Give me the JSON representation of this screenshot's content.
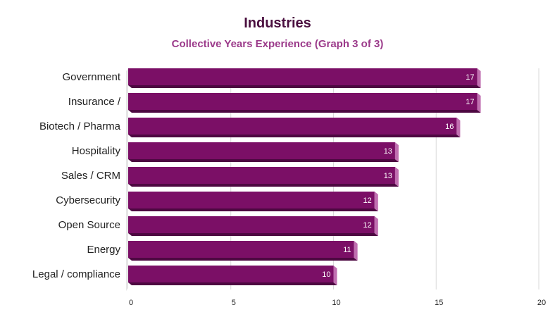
{
  "chart_data": {
    "type": "bar",
    "orientation": "horizontal",
    "title": "Industries",
    "subtitle": "Collective Years Experience (Graph 3 of 3)",
    "xlabel": "",
    "ylabel": "",
    "categories": [
      "Government",
      "Insurance /",
      "Biotech / Pharma",
      "Hospitality",
      "Sales / CRM",
      "Cybersecurity",
      "Open Source",
      "Energy",
      "Legal / compliance"
    ],
    "values": [
      17,
      17,
      16,
      13,
      13,
      12,
      12,
      11,
      10
    ],
    "xlim": [
      0,
      20
    ],
    "xticks": [
      0,
      5,
      10,
      15,
      20
    ],
    "grid": "vertical",
    "legend": "none",
    "colors": {
      "bar": "#7b0f66",
      "bar_side": "#c06fb0",
      "bar_bottom": "#4d0841",
      "title": "#4a0f3f",
      "subtitle": "#9b3a8a",
      "grid": "#d9d9d9"
    }
  }
}
